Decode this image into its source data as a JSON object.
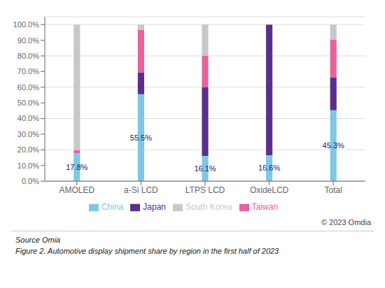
{
  "chart_data": {
    "type": "bar",
    "stacked": true,
    "categories": [
      "AMOLED",
      "a-Si LCD",
      "LTPS LCD",
      "OxideLCD",
      "Total"
    ],
    "series": [
      {
        "name": "China",
        "color": "#7EC8E3",
        "values": [
          17.8,
          55.5,
          16.1,
          16.6,
          45.3
        ],
        "data_labels": true,
        "value_labels": [
          "17.8%",
          "55.5%",
          "16.1%",
          "16.6%",
          "45.3%"
        ]
      },
      {
        "name": "Japan",
        "color": "#5B2D8E",
        "values": [
          0.0,
          14.0,
          44.0,
          83.4,
          21.0
        ]
      },
      {
        "name": "Taiwan",
        "color": "#E8619A",
        "values": [
          2.0,
          27.0,
          20.0,
          0.0,
          24.0
        ]
      },
      {
        "name": "South Korea",
        "color": "#C8C8C8",
        "values": [
          80.2,
          3.5,
          20.0,
          0.0,
          9.7
        ]
      }
    ],
    "ylim": [
      0,
      105
    ],
    "yticks": [
      {
        "value": 0,
        "label": "0.0%"
      },
      {
        "value": 10,
        "label": "10.0%"
      },
      {
        "value": 20,
        "label": "20.0%"
      },
      {
        "value": 30,
        "label": "30.0%"
      },
      {
        "value": 40,
        "label": "40.0%"
      },
      {
        "value": 50,
        "label": "50.0%"
      },
      {
        "value": 60,
        "label": "60.0%"
      },
      {
        "value": 70,
        "label": "70.0%"
      },
      {
        "value": 80,
        "label": "80.0%"
      },
      {
        "value": 90,
        "label": "90.0%"
      },
      {
        "value": 100,
        "label": "100.0%"
      }
    ],
    "grid": true,
    "legend": "bottom",
    "annotations": [
      "© 2023 Omdia",
      "Source Omia",
      "Figure 2. Automotive display shipment share by region in the first half of 2023"
    ]
  }
}
